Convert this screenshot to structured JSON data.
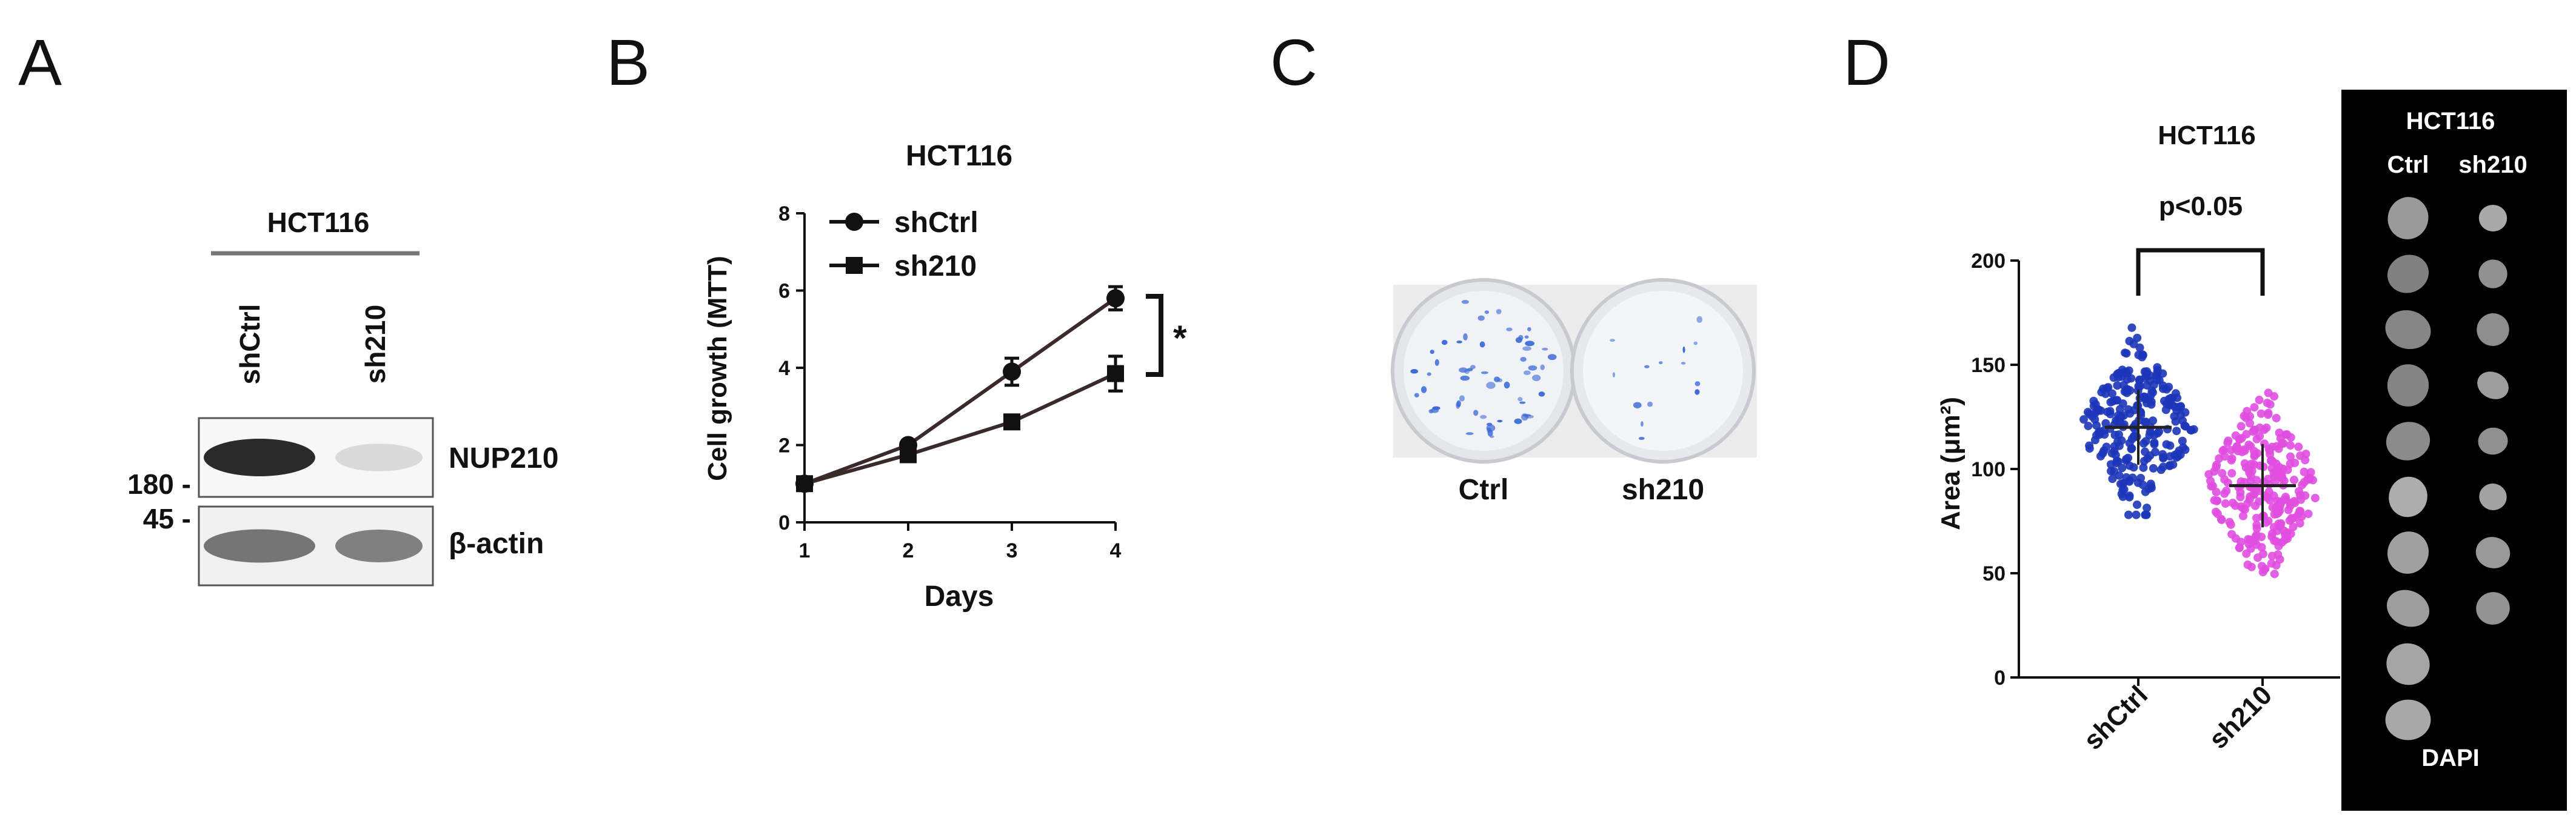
{
  "panels": {
    "a": "A",
    "b": "B",
    "c": "C",
    "d": "D"
  },
  "panel_a": {
    "cell_line": "HCT116",
    "lanes": [
      "shCtrl",
      "sh210"
    ],
    "bands": [
      {
        "label": "NUP210",
        "marker": "180 -",
        "intensity": [
          0.9,
          0.08
        ]
      },
      {
        "label": "β-actin",
        "marker": "45 -",
        "intensity": [
          0.55,
          0.5
        ]
      }
    ]
  },
  "panel_b": {
    "significance": "*",
    "chart_data": {
      "type": "line",
      "title": "HCT116",
      "xlabel": "Days",
      "ylabel": "Cell growth (MTT)",
      "x": [
        1,
        2,
        3,
        4
      ],
      "xticks": [
        "1",
        "2",
        "3",
        "4"
      ],
      "yticks": [
        "0",
        "2",
        "4",
        "6",
        "8"
      ],
      "xlim": [
        1,
        4
      ],
      "ylim": [
        0,
        8
      ],
      "legend": "top-left",
      "series": [
        {
          "name": "shCtrl",
          "marker": "circle",
          "values": [
            1.0,
            2.0,
            3.9,
            5.8
          ],
          "errors": [
            0.05,
            0.1,
            0.35,
            0.3
          ]
        },
        {
          "name": "sh210",
          "marker": "square",
          "values": [
            1.0,
            1.75,
            2.6,
            3.85
          ],
          "errors": [
            0.05,
            0.1,
            0.15,
            0.45
          ]
        }
      ]
    }
  },
  "panel_c": {
    "labels": [
      "Ctrl",
      "sh210"
    ],
    "colony_color": "#3a6ad6"
  },
  "panel_d": {
    "significance": "p<0.05",
    "chart_data": {
      "type": "scatter",
      "title": "HCT116",
      "ylabel": "Area (μm²)",
      "categories": [
        "shCtrl",
        "sh210"
      ],
      "yticks": [
        "0",
        "50",
        "100",
        "150",
        "200"
      ],
      "ylim": [
        0,
        200
      ],
      "grid": false,
      "series": [
        {
          "name": "shCtrl",
          "color": "#1d35b8",
          "mean": 120,
          "min": 78,
          "max": 173,
          "sd": 18
        },
        {
          "name": "sh210",
          "color": "#e04ee0",
          "mean": 92,
          "min": 45,
          "max": 150,
          "sd": 20
        }
      ]
    },
    "dapi_panel": {
      "cell_line": "HCT116",
      "columns": [
        "Ctrl",
        "sh210"
      ],
      "stain": "DAPI"
    }
  }
}
